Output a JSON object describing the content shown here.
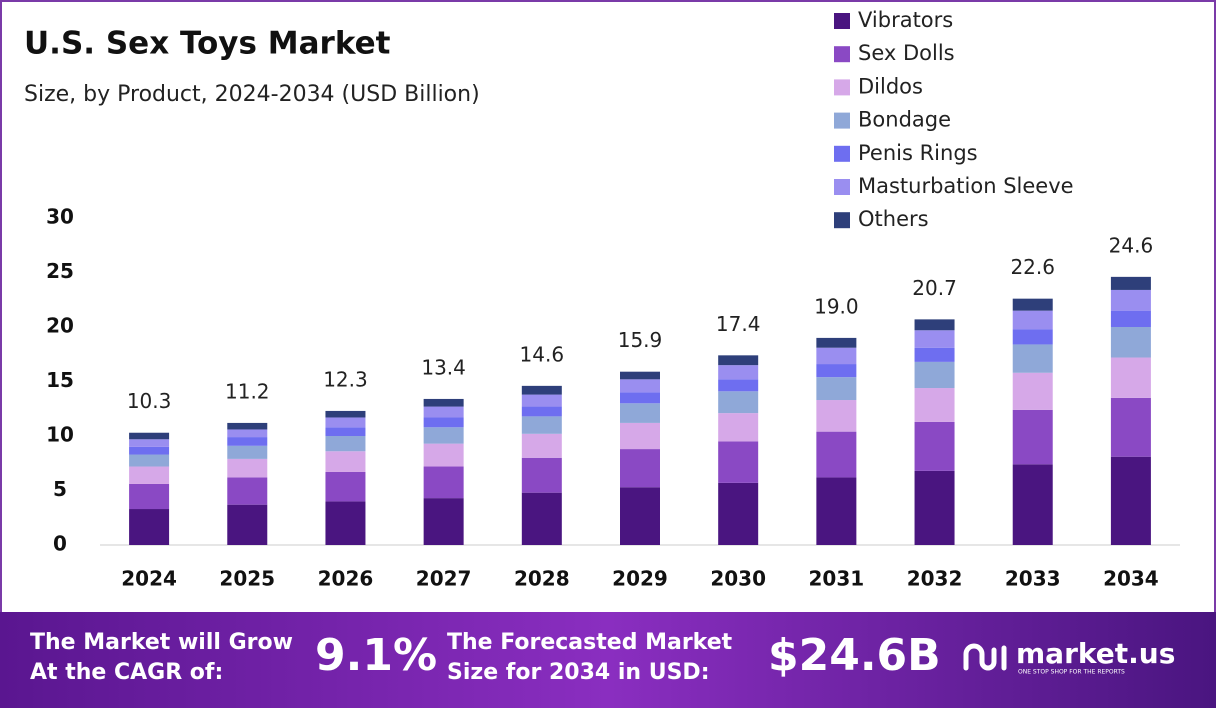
{
  "chart_data": {
    "type": "stacked_bar",
    "title": "U.S. Sex Toys Market",
    "subtitle": "Size, by Product, 2024-2034 (USD Billion)",
    "categories": [
      "2024",
      "2025",
      "2026",
      "2027",
      "2028",
      "2029",
      "2030",
      "2031",
      "2032",
      "2033",
      "2034"
    ],
    "series": [
      {
        "name": "Vibrators",
        "color": "#4a1580",
        "values": [
          3.3,
          3.7,
          4.0,
          4.3,
          4.8,
          5.3,
          5.7,
          6.2,
          6.8,
          7.4,
          8.1
        ]
      },
      {
        "name": "Sex Dolls",
        "color": "#8a49c4",
        "values": [
          2.3,
          2.5,
          2.7,
          2.9,
          3.2,
          3.5,
          3.8,
          4.2,
          4.5,
          5.0,
          5.4
        ]
      },
      {
        "name": "Dildos",
        "color": "#d6a8e8",
        "values": [
          1.6,
          1.7,
          1.9,
          2.1,
          2.2,
          2.4,
          2.6,
          2.9,
          3.1,
          3.4,
          3.7
        ]
      },
      {
        "name": "Bondage",
        "color": "#8fa8d8",
        "values": [
          1.1,
          1.2,
          1.4,
          1.5,
          1.6,
          1.8,
          2.0,
          2.1,
          2.4,
          2.6,
          2.8
        ]
      },
      {
        "name": "Penis Rings",
        "color": "#6e6ef0",
        "values": [
          0.7,
          0.8,
          0.8,
          0.9,
          0.9,
          1.0,
          1.1,
          1.2,
          1.3,
          1.4,
          1.5
        ]
      },
      {
        "name": "Masturbation Sleeve",
        "color": "#9a8ef0",
        "values": [
          0.7,
          0.7,
          0.9,
          1.0,
          1.1,
          1.2,
          1.3,
          1.5,
          1.6,
          1.7,
          1.9
        ]
      },
      {
        "name": "Others",
        "color": "#2e3f7a",
        "values": [
          0.6,
          0.6,
          0.6,
          0.7,
          0.8,
          0.7,
          0.9,
          0.9,
          1.0,
          1.1,
          1.2
        ]
      }
    ],
    "totals": [
      10.3,
      11.2,
      12.3,
      13.4,
      14.6,
      15.9,
      17.4,
      19.0,
      20.7,
      22.6,
      24.6
    ],
    "total_labels": [
      "10.3",
      "11.2",
      "12.3",
      "13.4",
      "14.6",
      "15.9",
      "17.4",
      "19.0",
      "20.7",
      "22.6",
      "24.6"
    ],
    "ylim": [
      0,
      30
    ],
    "yticks": [
      0,
      5,
      10,
      15,
      20,
      25,
      30
    ],
    "grid": false,
    "legend": "top-right"
  },
  "footer": {
    "cagr_label": [
      "The Market will Grow",
      "At the CAGR of:"
    ],
    "cagr": "9.1%",
    "forecast_label": [
      "The Forecasted Market",
      "Size for 2034 in USD:"
    ],
    "forecast": "$24.6B",
    "brand": "market.us",
    "tagline": "ONE STOP SHOP FOR THE REPORTS"
  }
}
